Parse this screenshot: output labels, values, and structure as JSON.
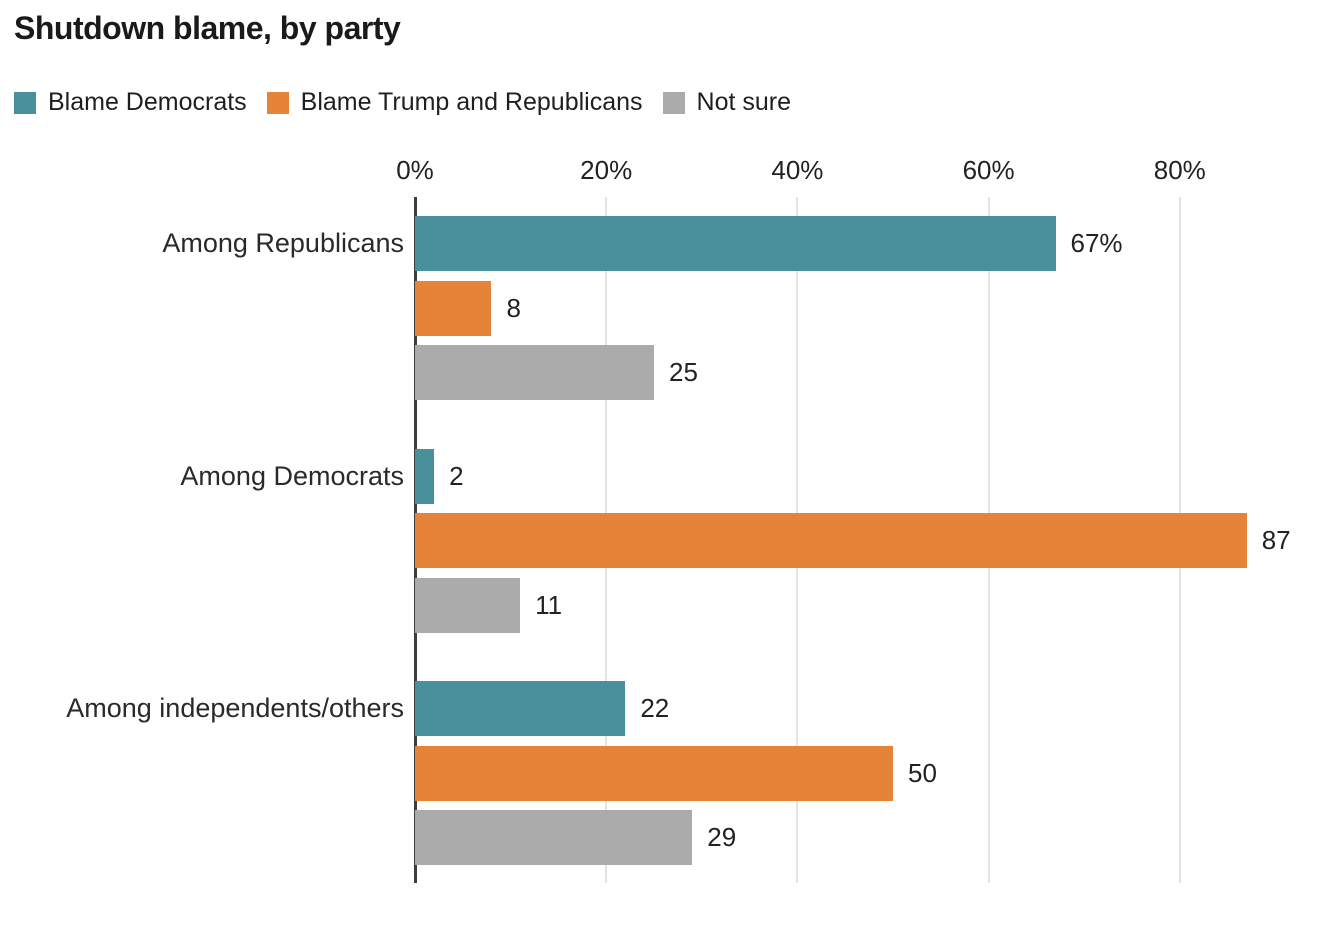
{
  "title": "Shutdown blame, by party",
  "legend": {
    "items": [
      {
        "label": "Blame Democrats",
        "color": "#4a8f9c"
      },
      {
        "label": "Blame Trump and Republicans",
        "color": "#e58438"
      },
      {
        "label": "Not sure",
        "color": "#ababab"
      }
    ]
  },
  "chart_data": {
    "type": "bar",
    "orientation": "horizontal",
    "title": "Shutdown blame, by party",
    "categories": [
      "Among Republicans",
      "Among Democrats",
      "Among independents/others"
    ],
    "series": [
      {
        "name": "Blame Democrats",
        "color": "#4a8f9c",
        "values": [
          67,
          2,
          22
        ],
        "labels": [
          "67%",
          "2",
          "22"
        ]
      },
      {
        "name": "Blame Trump and Republicans",
        "color": "#e58438",
        "values": [
          8,
          87,
          50
        ],
        "labels": [
          "8",
          "87",
          "50"
        ]
      },
      {
        "name": "Not sure",
        "color": "#ababab",
        "values": [
          25,
          11,
          29
        ],
        "labels": [
          "25",
          "11",
          "29"
        ]
      }
    ],
    "x_ticks": [
      {
        "value": 0,
        "label": "0%"
      },
      {
        "value": 20,
        "label": "20%"
      },
      {
        "value": 40,
        "label": "40%"
      },
      {
        "value": 60,
        "label": "60%"
      },
      {
        "value": 80,
        "label": "80%"
      }
    ],
    "xlim": [
      0,
      95
    ],
    "grid": "vertical",
    "legend_position": "top",
    "value_labels_shown": true
  },
  "colors": {
    "axis_line": "#3d3d3d",
    "gridline": "#e4e4e4",
    "text": "#222222"
  }
}
